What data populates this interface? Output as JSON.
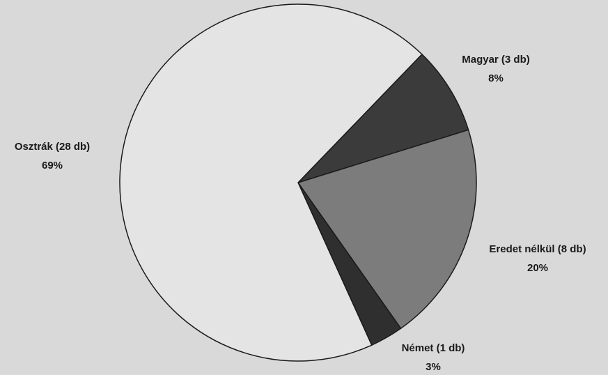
{
  "chart_data": {
    "type": "pie",
    "categories": [
      "Magyar (3 db)",
      "Eredet nélkül (8 db)",
      "Német (1 db)",
      "Osztrák (28 db)"
    ],
    "values": [
      8,
      20,
      3,
      69
    ],
    "value_labels": [
      "8%",
      "20%",
      "3%",
      "69%"
    ],
    "colors": [
      "#3b3b3b",
      "#7c7c7c",
      "#2f2f2f",
      "#e4e4e4"
    ]
  }
}
